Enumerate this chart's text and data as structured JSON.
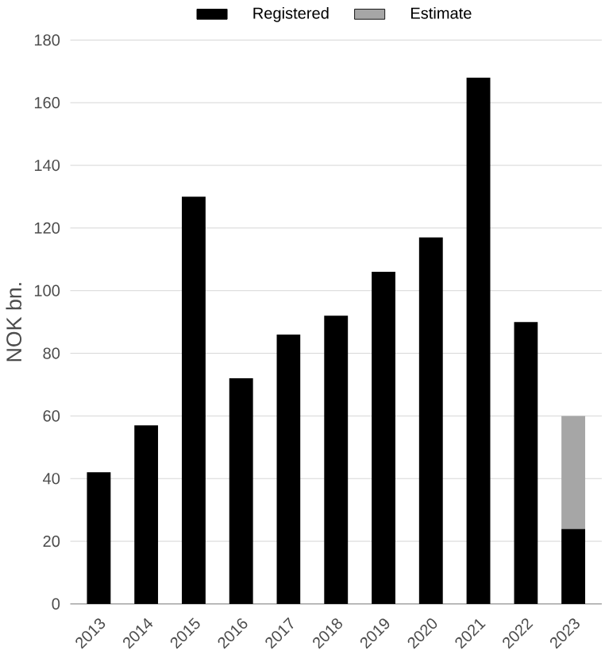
{
  "chart_data": {
    "type": "bar",
    "ylabel": "NOK bn.",
    "stacked": true,
    "categories": [
      "2013",
      "2014",
      "2015",
      "2016",
      "2017",
      "2018",
      "2019",
      "2020",
      "2021",
      "2022",
      "2023"
    ],
    "series": [
      {
        "name": "Registered",
        "color": "#000000",
        "values": [
          42,
          57,
          130,
          72,
          86,
          92,
          106,
          117,
          168,
          90,
          24
        ]
      },
      {
        "name": "Estimate",
        "color": "#a6a6a6",
        "values": [
          null,
          null,
          null,
          null,
          null,
          null,
          null,
          null,
          null,
          null,
          36
        ]
      }
    ],
    "ylim": [
      0,
      180
    ],
    "yticks": [
      0,
      20,
      40,
      60,
      80,
      100,
      120,
      140,
      160,
      180
    ],
    "grid": "y",
    "legend": "top"
  }
}
